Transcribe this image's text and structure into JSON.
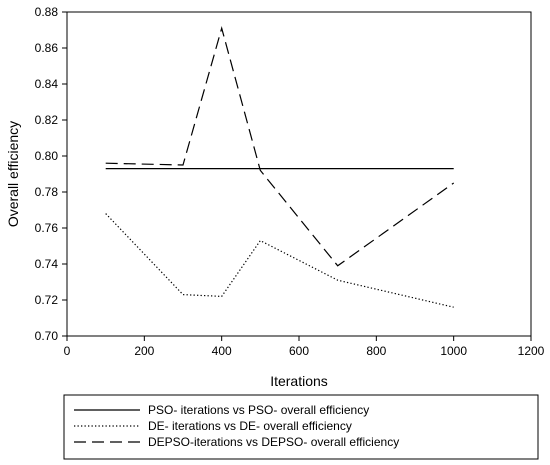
{
  "chart_data": {
    "type": "line",
    "xlabel": "Iterations",
    "ylabel": "Overall efficiency",
    "xlim": [
      0,
      1200
    ],
    "ylim": [
      0.7,
      0.88
    ],
    "xticks": [
      "0",
      "200",
      "400",
      "600",
      "800",
      "1000",
      "1200"
    ],
    "yticks": [
      "0.70",
      "0.72",
      "0.74",
      "0.76",
      "0.78",
      "0.80",
      "0.82",
      "0.84",
      "0.86",
      "0.88"
    ],
    "grid": false,
    "legend_position": "bottom",
    "series": [
      {
        "name": "PSO- iterations vs PSO- overall efficiency",
        "style": "solid",
        "color": "#000000",
        "x": [
          100,
          1000
        ],
        "y": [
          0.793,
          0.793
        ]
      },
      {
        "name": "DE- iterations vs DE- overall efficiency",
        "style": "dotted",
        "color": "#000000",
        "x": [
          100,
          300,
          400,
          500,
          700,
          1000
        ],
        "y": [
          0.768,
          0.723,
          0.722,
          0.753,
          0.731,
          0.716
        ]
      },
      {
        "name": "DEPSO-iterations vs DEPSO- overall efficiency",
        "style": "dashed",
        "color": "#000000",
        "x": [
          100,
          300,
          400,
          500,
          700,
          1000
        ],
        "y": [
          0.796,
          0.795,
          0.871,
          0.792,
          0.739,
          0.785
        ]
      }
    ]
  }
}
